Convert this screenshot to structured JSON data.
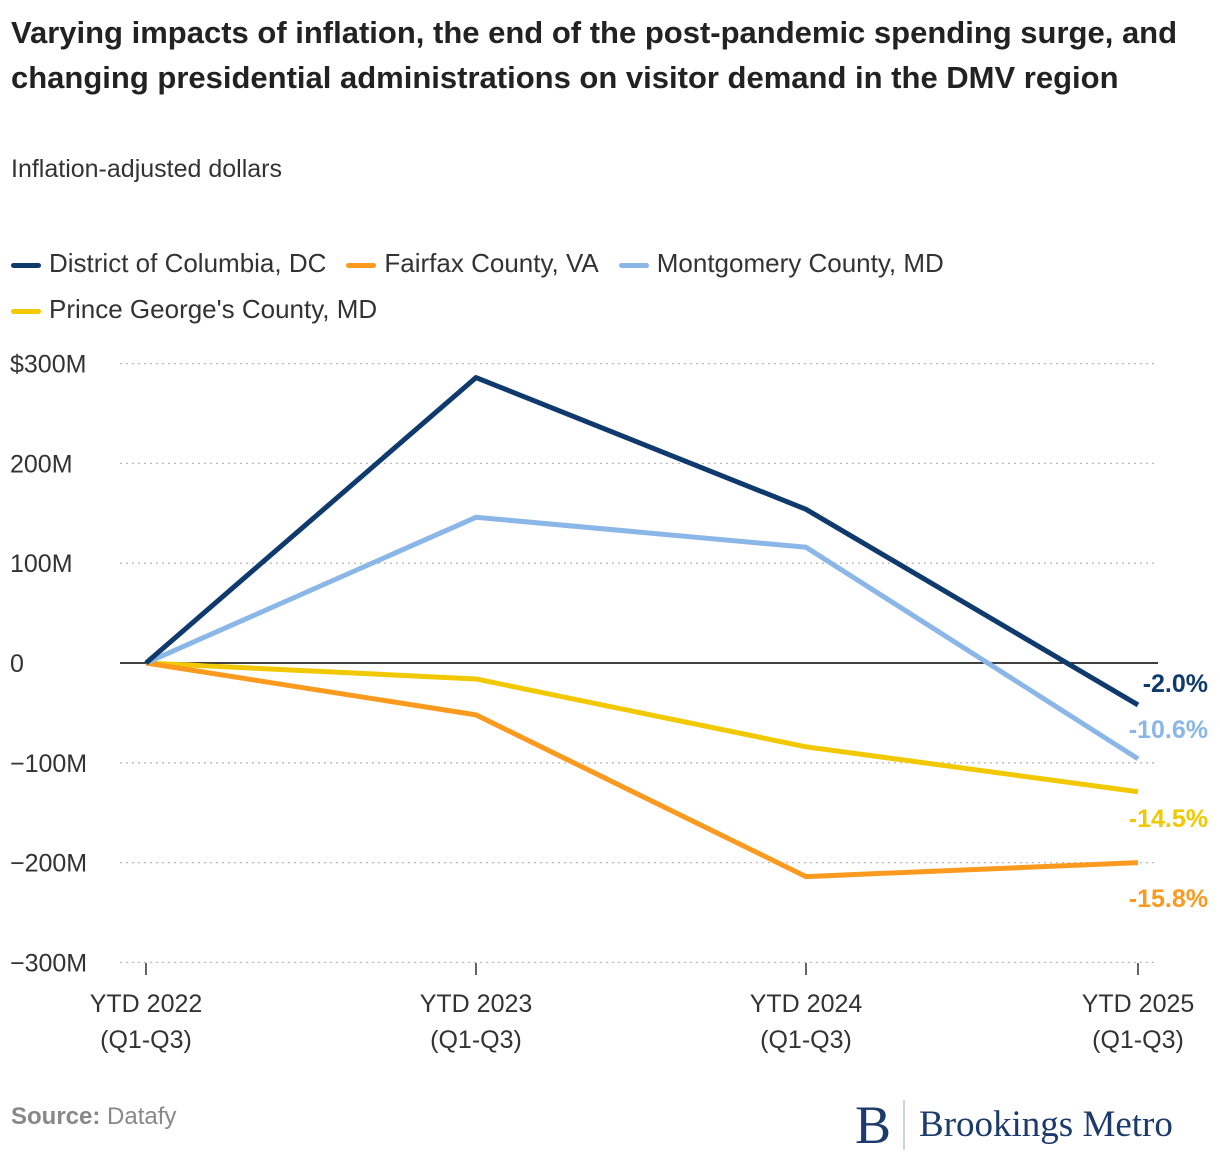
{
  "title": "Varying impacts of inflation, the end of the post-pandemic spending surge, and changing presidential administrations on visitor demand in the DMV region",
  "subtitle": "Inflation-adjusted dollars",
  "source_label": "Source:",
  "source": "Datafy",
  "logo": "Brookings Metro",
  "chart_data": {
    "type": "line",
    "title": "Varying impacts of inflation, the end of the post-pandemic spending surge, and changing presidential administrations on visitor demand in the DMV region",
    "subtitle": "Inflation-adjusted dollars",
    "categories": [
      "YTD 2022\n(Q1-Q3)",
      "YTD 2023\n(Q1-Q3)",
      "YTD 2024\n(Q1-Q3)",
      "YTD 2025\n(Q1-Q3)"
    ],
    "ylim": [
      -300,
      300
    ],
    "yticks": [
      300,
      200,
      100,
      0,
      -100,
      -200,
      -300
    ],
    "ytick_labels": [
      "$300M",
      "200M",
      "100M",
      "0",
      "−100M",
      "−200M",
      "−300M"
    ],
    "grid": true,
    "legend": "top",
    "series": [
      {
        "name": "District of Columbia, DC",
        "color": "#0f3a6d",
        "values": [
          0,
          286,
          154,
          -42
        ],
        "end_label": "-2.0%"
      },
      {
        "name": "Fairfax County, VA",
        "color": "#fb9a1f",
        "values": [
          0,
          -52,
          -214,
          -200
        ],
        "end_label": "-15.8%"
      },
      {
        "name": "Montgomery County, MD",
        "color": "#8ab6e8",
        "values": [
          0,
          146,
          116,
          -96
        ],
        "end_label": "-10.6%"
      },
      {
        "name": "Prince George's County, MD",
        "color": "#f2c900",
        "values": [
          0,
          -16,
          -84,
          -129
        ],
        "end_label": "-14.5%"
      }
    ]
  }
}
